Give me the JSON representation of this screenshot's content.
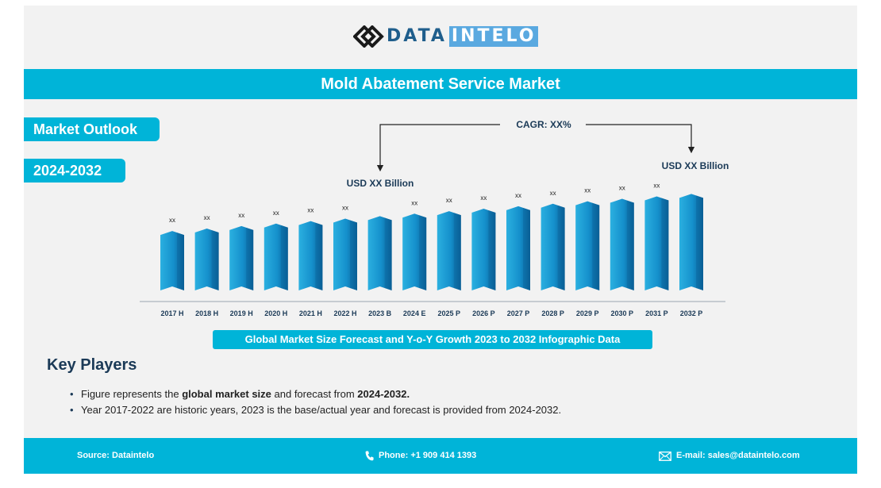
{
  "brand": {
    "name_part1": "DATA",
    "name_part2": "INTELO"
  },
  "title": "Mold Abatement Service Market",
  "tags": {
    "outlook": "Market Outlook",
    "years": "2024-2032"
  },
  "annotations": {
    "cagr": "CAGR: XX%",
    "start_value": "USD XX Billion",
    "end_value": "USD XX Billion"
  },
  "chart_data": {
    "type": "bar",
    "title": "Global Market Size Forecast and Y-o-Y Growth 2023 to 2032 Infographic Data",
    "categories": [
      "2017 H",
      "2018 H",
      "2019 H",
      "2020 H",
      "2021 H",
      "2022 H",
      "2023 B",
      "2024 E",
      "2025 P",
      "2026 P",
      "2027 P",
      "2028 P",
      "2029 P",
      "2030 P",
      "2031 P",
      "2032 P"
    ],
    "values": [
      72,
      75,
      78,
      81,
      84,
      87,
      90,
      93,
      96,
      99,
      102,
      105,
      108,
      111,
      114,
      117
    ],
    "data_labels": [
      "XX",
      "XX",
      "XX",
      "XX",
      "XX",
      "XX",
      "",
      "XX",
      "XX",
      "XX",
      "XX",
      "XX",
      "XX",
      "XX",
      "XX",
      ""
    ],
    "ylim": [
      0,
      120
    ],
    "xlabel": "",
    "ylabel": "",
    "grid": false,
    "colors": {
      "bar_light": "#2bb0e0",
      "bar_dark": "#0a5f96"
    }
  },
  "key_players": {
    "heading": "Key Players",
    "note1": {
      "a": "Figure represents the ",
      "b": "global market size",
      "c": " and forecast from ",
      "d": "2024-2032."
    },
    "note2": "Year 2017-2022 are historic years, 2023 is the base/actual year and forecast is provided from 2024-2032."
  },
  "footer": {
    "source": "Source: Dataintelo",
    "phone": "Phone: +1 909 414 1393",
    "email": "E-mail: sales@dataintelo.com"
  },
  "colors": {
    "accent": "#00b4d8",
    "panel": "#f2f2f2",
    "heading": "#1b3a57"
  }
}
